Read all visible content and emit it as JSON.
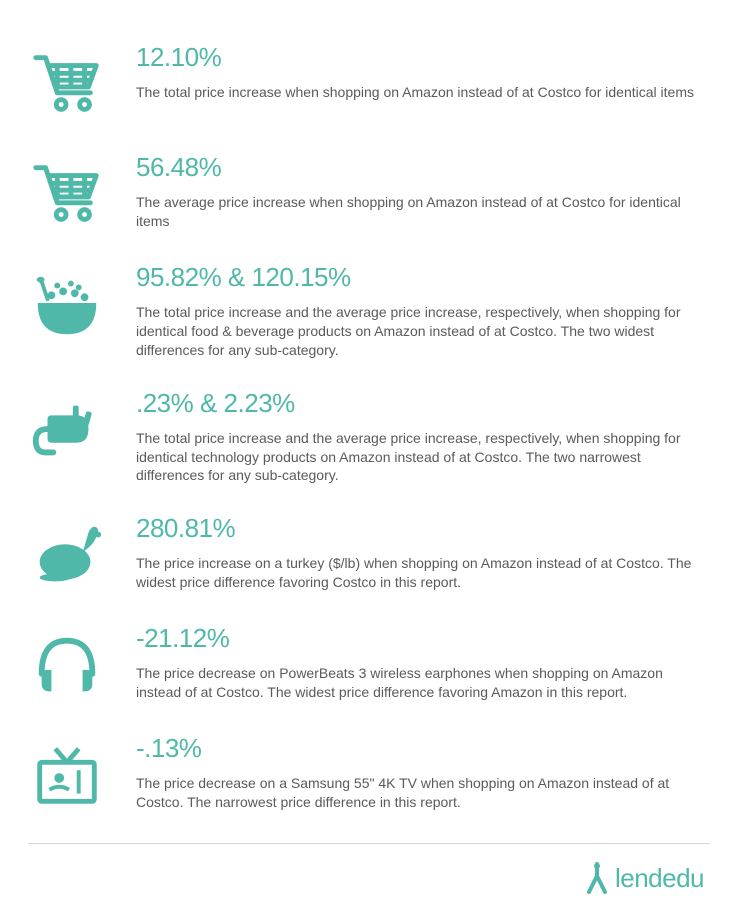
{
  "accent_color": "#4fb8a8",
  "text_color": "#5a5a5a",
  "divider_color": "#d8d8d8",
  "background_color": "#ffffff",
  "stat_fontsize": 26,
  "desc_fontsize": 14,
  "items": [
    {
      "icon": "cart",
      "stat": "12.10%",
      "desc": "The total price increase when shopping on Amazon instead of at Costco for identical items"
    },
    {
      "icon": "cart",
      "stat": "56.48%",
      "desc": "The average price increase when shopping on Amazon instead of at Costco for identical items"
    },
    {
      "icon": "bowl",
      "stat": "95.82% & 120.15%",
      "desc": "The total price increase and the average price increase, respectively, when shopping for identical food & beverage products on Amazon instead of at Costco. The two widest differences for any sub-category."
    },
    {
      "icon": "plug",
      "stat": ".23% & 2.23%",
      "desc": "The total price increase and the average price increase, respectively, when shopping for identical technology products on Amazon instead of at Costco. The two narrowest differences for any sub-category."
    },
    {
      "icon": "turkey",
      "stat": "280.81%",
      "desc": "The price increase on a turkey ($/lb) when shopping on Amazon instead of at Costco. The widest price difference favoring Costco in this report."
    },
    {
      "icon": "headphones",
      "stat": "-21.12%",
      "desc": "The price decrease on PowerBeats 3 wireless earphones when shopping on Amazon instead of at Costco. The widest price difference favoring Amazon in this report."
    },
    {
      "icon": "tv",
      "stat": "-.13%",
      "desc": "The price decrease on a Samsung 55\" 4K TV when shopping on Amazon instead of at Costco. The narrowest price difference in this report."
    }
  ],
  "footer": {
    "brand": "lendedu"
  }
}
